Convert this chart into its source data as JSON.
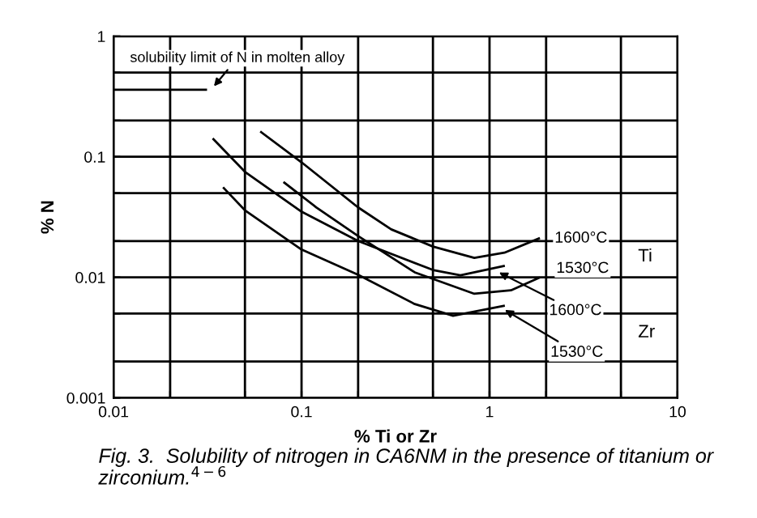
{
  "chart_data": {
    "type": "line",
    "xlabel": "% Ti or Zr",
    "ylabel": "% N",
    "log": "xy",
    "grid": true,
    "marker": "none",
    "line_style": "solid",
    "legend": false,
    "xlim": [
      0.01,
      10
    ],
    "ylim": [
      0.001,
      1
    ],
    "xticks": [
      0.01,
      {
        "value": 0.02,
        "label": null
      },
      {
        "value": 0.05,
        "label": null
      },
      0.1,
      {
        "value": 0.2,
        "label": null
      },
      {
        "value": 0.5,
        "label": null
      },
      1,
      {
        "value": 2,
        "label": null
      },
      {
        "value": 5,
        "label": null
      },
      10
    ],
    "yticks": [
      0.001,
      {
        "value": 0.002,
        "label": null
      },
      {
        "value": 0.005,
        "label": null
      },
      0.01,
      {
        "value": 0.02,
        "label": null
      },
      {
        "value": 0.05,
        "label": null
      },
      0.1,
      {
        "value": 0.2,
        "label": null
      },
      {
        "value": 0.5,
        "label": null
      },
      1
    ],
    "series": [
      {
        "color": "#000000",
        "x": [
          0.01,
          0.031
        ],
        "values": [
          0.36,
          0.36
        ]
      },
      {
        "color": "#000000",
        "x": [
          0.061,
          0.1,
          0.2,
          0.3,
          0.5,
          0.83,
          1.2,
          1.83
        ],
        "values": [
          0.16,
          0.09,
          0.038,
          0.025,
          0.018,
          0.0145,
          0.016,
          0.021
        ]
      },
      {
        "color": "#000000",
        "x": [
          0.034,
          0.05,
          0.1,
          0.2,
          0.5,
          0.7,
          1.19
        ],
        "values": [
          0.14,
          0.075,
          0.035,
          0.02,
          0.0115,
          0.0104,
          0.0124
        ]
      },
      {
        "color": "#000000",
        "x": [
          0.081,
          0.12,
          0.2,
          0.4,
          0.83,
          1.3,
          1.83
        ],
        "values": [
          0.061,
          0.038,
          0.022,
          0.011,
          0.0073,
          0.0078,
          0.0099
        ]
      },
      {
        "color": "#000000",
        "x": [
          0.0386,
          0.05,
          0.1,
          0.2,
          0.4,
          0.64,
          1.19
        ],
        "values": [
          0.055,
          0.036,
          0.017,
          0.0105,
          0.006,
          0.0048,
          0.0058
        ]
      }
    ],
    "annotations": [
      "Fig. 3.  Solubility of nitrogen in CA6NM in the presence of titanium or zirconium.$^{4−6}$",
      {
        "text": "solubility limit of N in molten alloy",
        "x": 0.033,
        "y": 0.36
      },
      {
        "text": "1600°C",
        "x": 1.83,
        "y": 0.021
      },
      "1530°C",
      {
        "text": "1600°C",
        "x": 1.07,
        "y": 0.0114
      },
      {
        "text": "1530°C",
        "x": 1.15,
        "y": 0.0056
      },
      "Ti",
      "Zr"
    ]
  }
}
